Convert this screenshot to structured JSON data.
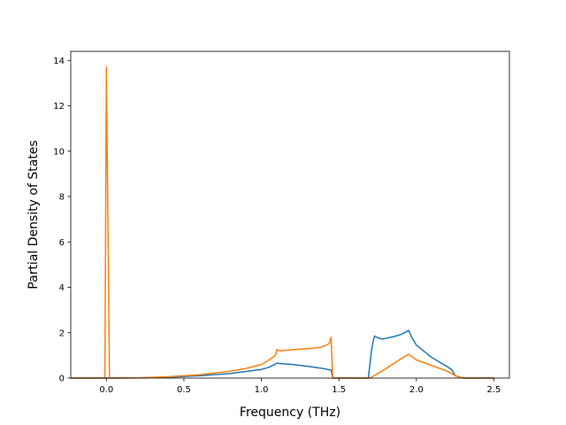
{
  "chart_data": {
    "type": "line",
    "xlabel": "Frequency (THz)",
    "ylabel": "Partial Density of States",
    "xlim": [
      -0.23,
      2.6
    ],
    "ylim": [
      0,
      14.4
    ],
    "x_ticks": [
      0.0,
      0.5,
      1.0,
      1.5,
      2.0,
      2.5
    ],
    "x_tick_labels": [
      "0.0",
      "0.5",
      "1.0",
      "1.5",
      "2.0",
      "2.5"
    ],
    "y_ticks": [
      0,
      2,
      4,
      6,
      8,
      10,
      12,
      14
    ],
    "y_tick_labels": [
      "0",
      "2",
      "4",
      "6",
      "8",
      "10",
      "12",
      "14"
    ],
    "grid": false,
    "colors": [
      "#1f77b4",
      "#ff7f0e"
    ],
    "series": [
      {
        "color": "#1f77b4",
        "x": [
          -0.23,
          -0.01,
          0.02,
          0.2,
          0.4,
          0.6,
          0.8,
          1.0,
          1.05,
          1.08,
          1.1,
          1.12,
          1.2,
          1.3,
          1.4,
          1.45,
          1.46,
          1.5,
          1.69,
          1.71,
          1.72,
          1.73,
          1.75,
          1.78,
          1.8,
          1.85,
          1.9,
          1.93,
          1.95,
          1.97,
          2.0,
          2.1,
          2.2,
          2.23,
          2.25,
          2.3,
          2.5
        ],
        "y": [
          0,
          0,
          0,
          0.01,
          0.04,
          0.1,
          0.2,
          0.38,
          0.48,
          0.58,
          0.66,
          0.64,
          0.6,
          0.52,
          0.42,
          0.35,
          0,
          0,
          0,
          1.2,
          1.6,
          1.85,
          1.78,
          1.72,
          1.75,
          1.82,
          1.92,
          2.02,
          2.1,
          1.8,
          1.45,
          0.9,
          0.5,
          0.35,
          0.1,
          0,
          0
        ]
      },
      {
        "color": "#ff7f0e",
        "x": [
          -0.23,
          -0.01,
          0.0,
          0.02,
          0.05,
          0.2,
          0.4,
          0.6,
          0.8,
          0.9,
          1.0,
          1.05,
          1.09,
          1.1,
          1.12,
          1.2,
          1.3,
          1.38,
          1.42,
          1.44,
          1.45,
          1.46,
          1.5,
          1.7,
          1.8,
          1.9,
          1.95,
          1.98,
          2.0,
          2.1,
          2.2,
          2.25,
          2.3,
          2.5
        ],
        "y": [
          0,
          0,
          13.7,
          0,
          0,
          0.01,
          0.06,
          0.15,
          0.3,
          0.42,
          0.6,
          0.8,
          1.0,
          1.25,
          1.2,
          1.25,
          1.3,
          1.35,
          1.45,
          1.55,
          1.8,
          0,
          0,
          0,
          0.4,
          0.85,
          1.05,
          0.9,
          0.8,
          0.55,
          0.3,
          0.1,
          0,
          0
        ]
      }
    ]
  }
}
